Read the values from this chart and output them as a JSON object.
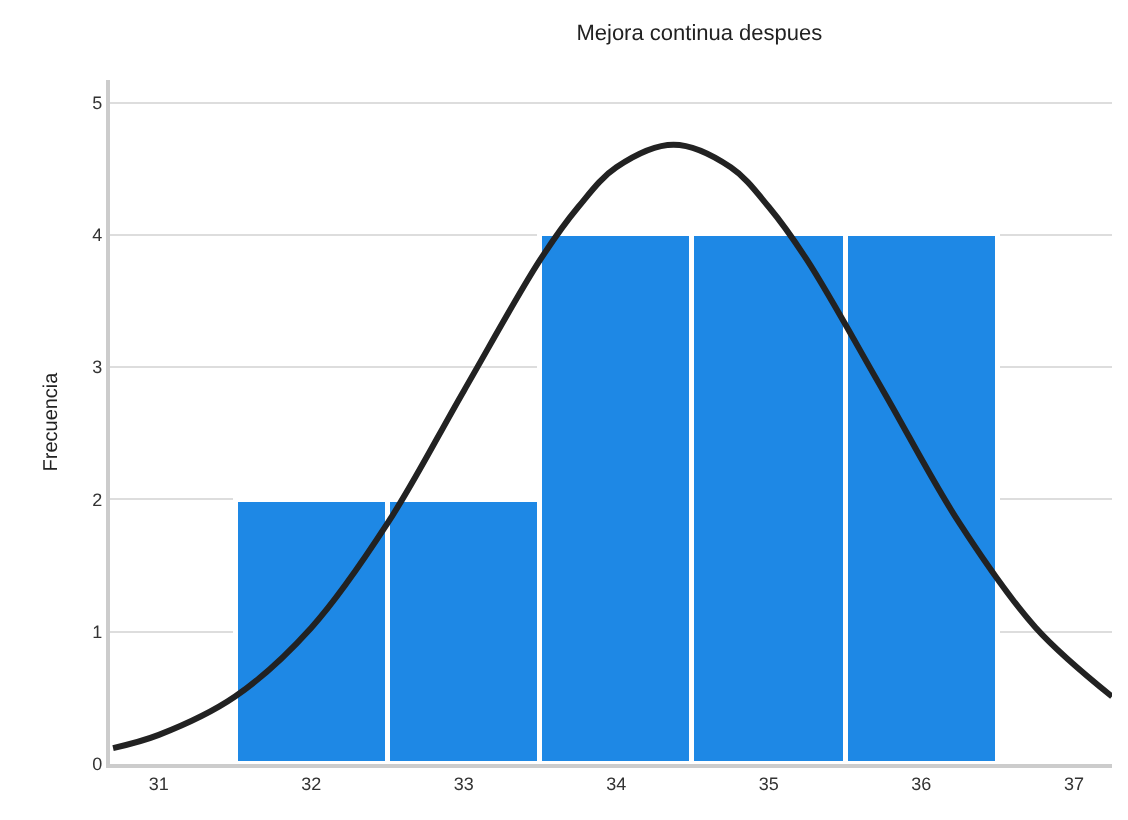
{
  "chart_data": {
    "type": "histogram",
    "title": "Mejora continua despues",
    "ylabel": "Frecuencia",
    "bins": [
      31.5,
      32.5,
      33.5,
      34.5,
      35.5,
      36.5
    ],
    "values": [
      2,
      2,
      4,
      4,
      4
    ],
    "color": "#1e88e5",
    "series": [
      {
        "type": "line",
        "color": "#222222",
        "x": [
          30.7,
          31,
          31.5,
          32,
          32.5,
          33,
          33.5,
          33.75,
          34,
          34.375,
          34.75,
          35,
          35.25,
          35.75,
          36.25,
          36.75,
          37.25
        ],
        "values": [
          0.12,
          0.22,
          0.51,
          1.03,
          1.82,
          2.82,
          3.81,
          4.21,
          4.51,
          4.68,
          4.51,
          4.21,
          3.81,
          2.82,
          1.82,
          1.03,
          0.51
        ]
      }
    ],
    "xlim": [
      30.68,
      37.25
    ],
    "xticks": [
      31,
      32,
      33,
      34,
      35,
      36,
      37
    ],
    "ylim": [
      0,
      5.17
    ],
    "yticks": [
      0,
      1,
      2,
      3,
      4,
      5
    ],
    "grid": "y"
  }
}
